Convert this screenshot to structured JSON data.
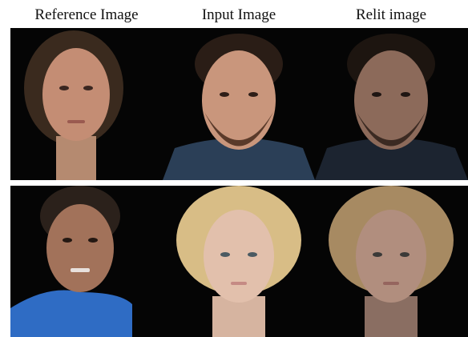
{
  "figure": {
    "column_headers": [
      "Reference Image",
      "Input Image",
      "Relit image"
    ]
  }
}
